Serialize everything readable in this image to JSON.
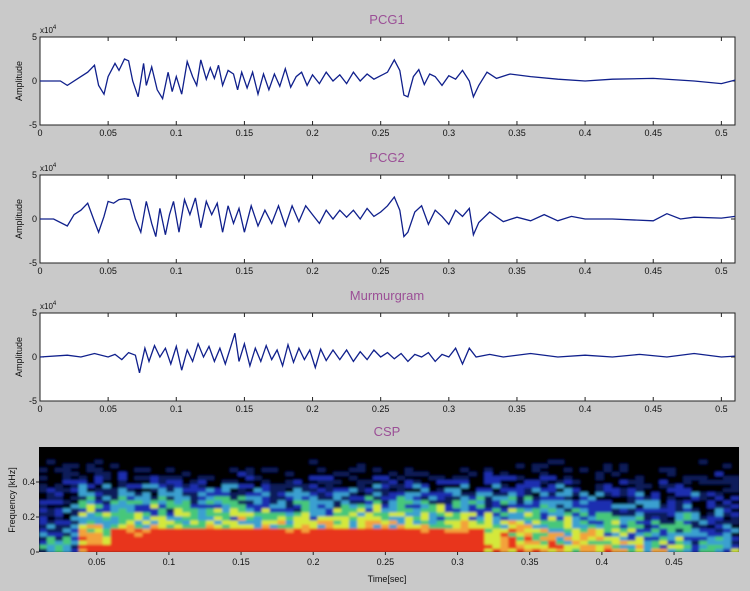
{
  "chart_data": [
    {
      "type": "line",
      "title": "PCG1",
      "ylabel": "Amplitude",
      "y_multiplier": "x10",
      "y_multiplier_exp": "4",
      "xlim": [
        0,
        0.51
      ],
      "ylim": [
        -5,
        5
      ],
      "x_ticks": [
        "0",
        "0.05",
        "0.1",
        "0.15",
        "0.2",
        "0.25",
        "0.3",
        "0.35",
        "0.4",
        "0.45",
        "0.5"
      ],
      "y_ticks": [
        "5",
        "0",
        "-5"
      ],
      "line_color": "#10208c",
      "series": [
        {
          "x": [
            0,
            0.015,
            0.02,
            0.03,
            0.035,
            0.04,
            0.043,
            0.047,
            0.05,
            0.055,
            0.058,
            0.062,
            0.065,
            0.068,
            0.072,
            0.076,
            0.078,
            0.082,
            0.086,
            0.09,
            0.094,
            0.097,
            0.1,
            0.104,
            0.108,
            0.112,
            0.115,
            0.118,
            0.122,
            0.125,
            0.128,
            0.131,
            0.134,
            0.138,
            0.142,
            0.145,
            0.148,
            0.152,
            0.156,
            0.16,
            0.164,
            0.168,
            0.172,
            0.176,
            0.18,
            0.184,
            0.188,
            0.192,
            0.196,
            0.2,
            0.205,
            0.21,
            0.215,
            0.22,
            0.225,
            0.23,
            0.235,
            0.24,
            0.245,
            0.25,
            0.255,
            0.26,
            0.264,
            0.267,
            0.27,
            0.274,
            0.278,
            0.282,
            0.286,
            0.29,
            0.295,
            0.3,
            0.305,
            0.31,
            0.315,
            0.318,
            0.322,
            0.328,
            0.335,
            0.345,
            0.36,
            0.38,
            0.4,
            0.42,
            0.45,
            0.48,
            0.5,
            0.51
          ],
          "y": [
            0,
            0,
            -0.5,
            0.5,
            1,
            1.8,
            -0.5,
            -1.5,
            0.5,
            2,
            1.2,
            2.5,
            2.3,
            0,
            -1.8,
            2,
            -0.5,
            1.6,
            -1,
            -2,
            1,
            -1.2,
            0.5,
            -1.5,
            2.2,
            0.5,
            -0.5,
            2.4,
            0.2,
            1.5,
            0.3,
            1.8,
            -0.5,
            1.2,
            0.8,
            -1,
            1,
            -0.8,
            1,
            -1.5,
            0.8,
            -1,
            0.8,
            -0.6,
            1.4,
            -0.7,
            0.5,
            1,
            -0.5,
            0.7,
            -0.3,
            1,
            0,
            0.7,
            -0.3,
            1,
            0,
            0.8,
            0.2,
            0.6,
            1,
            2.4,
            1.2,
            -1.6,
            -1.8,
            0.5,
            1.3,
            -0.4,
            0.8,
            0.5,
            -0.5,
            0.6,
            0.2,
            1.2,
            0,
            -1.8,
            -0.5,
            1,
            0.3,
            0.8,
            0.5,
            0.2,
            0,
            0.2,
            0.3,
            0,
            -0.3,
            0.1
          ]
        }
      ]
    },
    {
      "type": "line",
      "title": "PCG2",
      "ylabel": "Amplitude",
      "y_multiplier": "x10",
      "y_multiplier_exp": "4",
      "xlim": [
        0,
        0.51
      ],
      "ylim": [
        -5,
        5
      ],
      "x_ticks": [
        "0",
        "0.05",
        "0.1",
        "0.15",
        "0.2",
        "0.25",
        "0.3",
        "0.35",
        "0.4",
        "0.45",
        "0.5"
      ],
      "y_ticks": [
        "5",
        "0",
        "-5"
      ],
      "line_color": "#10208c",
      "series": [
        {
          "x": [
            0,
            0.01,
            0.02,
            0.025,
            0.03,
            0.035,
            0.04,
            0.043,
            0.047,
            0.05,
            0.054,
            0.058,
            0.062,
            0.066,
            0.07,
            0.074,
            0.078,
            0.082,
            0.085,
            0.088,
            0.092,
            0.095,
            0.098,
            0.102,
            0.106,
            0.11,
            0.114,
            0.118,
            0.122,
            0.126,
            0.13,
            0.134,
            0.138,
            0.142,
            0.146,
            0.15,
            0.155,
            0.16,
            0.165,
            0.17,
            0.175,
            0.18,
            0.185,
            0.19,
            0.195,
            0.2,
            0.205,
            0.21,
            0.215,
            0.22,
            0.225,
            0.23,
            0.235,
            0.24,
            0.245,
            0.25,
            0.255,
            0.26,
            0.264,
            0.267,
            0.27,
            0.275,
            0.28,
            0.285,
            0.29,
            0.295,
            0.3,
            0.305,
            0.31,
            0.315,
            0.318,
            0.322,
            0.33,
            0.34,
            0.35,
            0.36,
            0.37,
            0.38,
            0.39,
            0.4,
            0.42,
            0.45,
            0.46,
            0.47,
            0.48,
            0.5,
            0.51
          ],
          "y": [
            0,
            0,
            -0.8,
            0.5,
            1,
            1.8,
            -0.3,
            -1.5,
            0.3,
            2,
            1.8,
            2.2,
            2.3,
            2.2,
            0,
            -1.5,
            2,
            -0.5,
            -2,
            1.2,
            -1.8,
            0.5,
            2,
            -1.5,
            2.2,
            0.5,
            2.4,
            -1,
            2,
            0.5,
            1.8,
            -1.5,
            1.5,
            -0.5,
            1.2,
            -1.5,
            1.5,
            -0.8,
            1,
            -0.5,
            1.5,
            -0.8,
            1.5,
            -0.3,
            1.5,
            0.5,
            -0.5,
            1,
            0,
            1,
            0.2,
            1,
            0,
            1.2,
            0.3,
            0.8,
            1.5,
            2.5,
            1,
            -2,
            -1.5,
            0.8,
            1.5,
            -0.6,
            1,
            0.3,
            -0.6,
            1,
            0.3,
            1.2,
            -1.8,
            -0.4,
            0.8,
            -0.3,
            0.2,
            -0.2,
            0.5,
            -0.2,
            0.3,
            0,
            0,
            -0.2,
            0.6,
            0,
            0.2,
            0.1,
            0.3
          ]
        }
      ]
    },
    {
      "type": "line",
      "title": "Murmurgram",
      "ylabel": "Amplitude",
      "y_multiplier": "x10",
      "y_multiplier_exp": "4",
      "xlim": [
        0,
        0.51
      ],
      "ylim": [
        -5,
        5
      ],
      "x_ticks": [
        "0",
        "0.05",
        "0.1",
        "0.15",
        "0.2",
        "0.25",
        "0.3",
        "0.35",
        "0.4",
        "0.45",
        "0.5"
      ],
      "y_ticks": [
        "5",
        "0",
        "-5"
      ],
      "line_color": "#10208c",
      "series": [
        {
          "x": [
            0,
            0.02,
            0.03,
            0.04,
            0.05,
            0.055,
            0.06,
            0.065,
            0.07,
            0.073,
            0.077,
            0.08,
            0.084,
            0.088,
            0.092,
            0.096,
            0.1,
            0.104,
            0.108,
            0.112,
            0.116,
            0.12,
            0.124,
            0.128,
            0.132,
            0.136,
            0.14,
            0.143,
            0.146,
            0.15,
            0.154,
            0.158,
            0.162,
            0.166,
            0.17,
            0.174,
            0.178,
            0.182,
            0.186,
            0.19,
            0.194,
            0.198,
            0.202,
            0.206,
            0.21,
            0.215,
            0.22,
            0.225,
            0.23,
            0.235,
            0.24,
            0.245,
            0.25,
            0.255,
            0.26,
            0.265,
            0.27,
            0.275,
            0.28,
            0.285,
            0.29,
            0.295,
            0.3,
            0.305,
            0.31,
            0.315,
            0.32,
            0.33,
            0.34,
            0.36,
            0.38,
            0.4,
            0.42,
            0.44,
            0.46,
            0.48,
            0.5,
            0.51
          ],
          "y": [
            0,
            0.2,
            0,
            0.4,
            0,
            0.3,
            -0.3,
            0.5,
            0.2,
            -1.8,
            1,
            -0.5,
            1.3,
            0,
            1,
            -0.8,
            1.2,
            -1.5,
            0.8,
            -0.5,
            1.5,
            0,
            1.2,
            -0.5,
            1,
            -0.8,
            1.2,
            2.7,
            -0.5,
            1.5,
            -1,
            1,
            -0.5,
            1.3,
            -0.3,
            0.8,
            -1,
            1.4,
            -0.6,
            1,
            -0.3,
            0.8,
            -1.2,
            0.9,
            -0.4,
            0.8,
            -0.3,
            0.8,
            -0.5,
            0.6,
            -0.3,
            0.8,
            0,
            0.5,
            -0.2,
            0.4,
            -0.5,
            0.3,
            0,
            0.5,
            -0.5,
            0.3,
            0,
            1,
            -0.8,
            1,
            0,
            0.3,
            0,
            0.4,
            0,
            0.2,
            0,
            0.3,
            0,
            0.4,
            0,
            0.1
          ]
        }
      ]
    },
    {
      "type": "heatmap",
      "title": "CSP",
      "xlabel": "Time[sec]",
      "ylabel": "Frequency [kHz]",
      "xlim": [
        0.01,
        0.495
      ],
      "ylim": [
        0,
        0.6
      ],
      "x_ticks": [
        "0.05",
        "0.1",
        "0.15",
        "0.2",
        "0.25",
        "0.3",
        "0.35",
        "0.4",
        "0.45"
      ],
      "y_ticks": [
        "0.4",
        "0.2",
        "0"
      ],
      "colormap": [
        "#000000",
        "#0a1a5a",
        "#1a2fb0",
        "#3aa0d0",
        "#46c77a",
        "#d4e83a",
        "#f3a23a",
        "#e8341a"
      ]
    }
  ]
}
